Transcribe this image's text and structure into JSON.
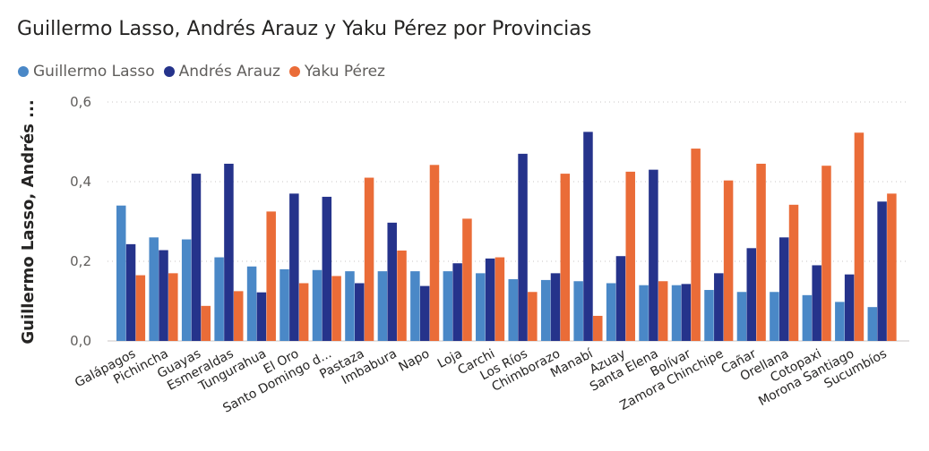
{
  "chart_data": {
    "type": "bar",
    "title": "Guillermo Lasso, Andrés Arauz y Yaku Pérez por Provincias",
    "ylabel": "Guillermo Lasso, Andrés ...",
    "xlabel": "",
    "ylim": [
      0,
      0.6
    ],
    "yticks": [
      "0,0",
      "0,2",
      "0,4",
      "0,6"
    ],
    "grid": true,
    "legend_position": "top-left",
    "categories": [
      "Galápagos",
      "Pichincha",
      "Guayas",
      "Esmeraldas",
      "Tungurahua",
      "El Oro",
      "Santo Domingo d...",
      "Pastaza",
      "Imbabura",
      "Napo",
      "Loja",
      "Carchi",
      "Los Ríos",
      "Chimborazo",
      "Manabí",
      "Azuay",
      "Santa Elena",
      "Bolívar",
      "Zamora Chinchipe",
      "Cañar",
      "Orellana",
      "Cotopaxi",
      "Morona Santiago",
      "Sucumbíos"
    ],
    "series": [
      {
        "name": "Guillermo Lasso",
        "color": "#4a88c7",
        "values": [
          0.34,
          0.26,
          0.255,
          0.21,
          0.187,
          0.18,
          0.178,
          0.175,
          0.175,
          0.175,
          0.175,
          0.17,
          0.155,
          0.153,
          0.15,
          0.145,
          0.14,
          0.14,
          0.128,
          0.123,
          0.123,
          0.115,
          0.098,
          0.085
        ]
      },
      {
        "name": "Andrés Arauz",
        "color": "#25338b",
        "values": [
          0.243,
          0.228,
          0.42,
          0.445,
          0.122,
          0.37,
          0.362,
          0.145,
          0.297,
          0.138,
          0.195,
          0.207,
          0.47,
          0.17,
          0.525,
          0.213,
          0.43,
          0.143,
          0.17,
          0.233,
          0.26,
          0.19,
          0.167,
          0.35
        ]
      },
      {
        "name": "Yaku Pérez",
        "color": "#ea6c38",
        "values": [
          0.165,
          0.17,
          0.088,
          0.125,
          0.325,
          0.145,
          0.163,
          0.41,
          0.227,
          0.442,
          0.307,
          0.21,
          0.123,
          0.42,
          0.063,
          0.425,
          0.15,
          0.483,
          0.403,
          0.445,
          0.342,
          0.44,
          0.523,
          0.37
        ]
      }
    ]
  }
}
